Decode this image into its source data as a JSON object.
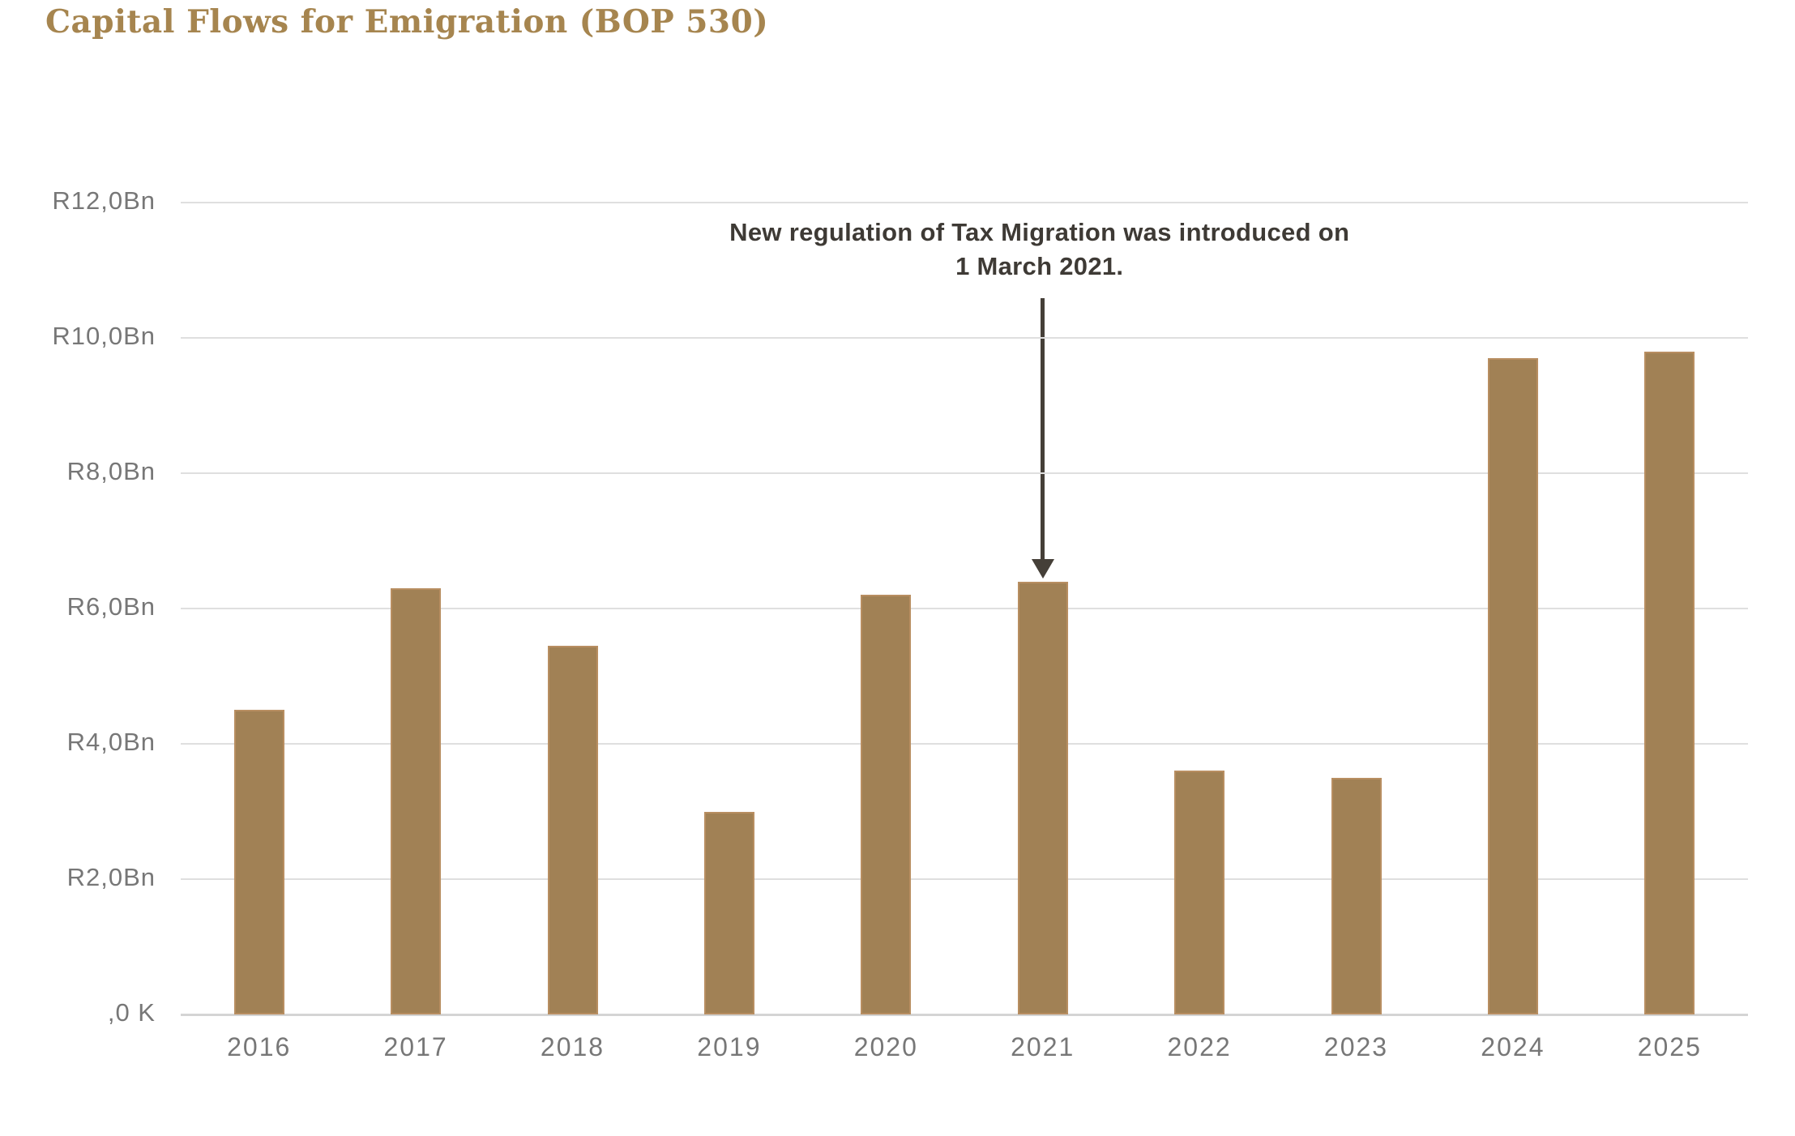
{
  "title": "Capital Flows for Emigration (BOP 530)",
  "annotation": {
    "line1": "New regulation of Tax Migration was introduced on",
    "line2": "1 March 2021."
  },
  "colors": {
    "title_text": "#A6854F",
    "bar_fill": "#A18155",
    "bar_border": "#B88E61",
    "gridline": "#DFDFDF",
    "baseline": "#D4D4D4",
    "axis_text": "#777777",
    "annotation_text": "#3E3A35",
    "arrow": "#453F38"
  },
  "chart_data": {
    "type": "bar",
    "title": "Capital Flows for Emigration (BOP 530)",
    "categories": [
      "2016",
      "2017",
      "2018",
      "2019",
      "2020",
      "2021",
      "2022",
      "2023",
      "2024",
      "2025"
    ],
    "values": [
      4.5,
      6.3,
      5.45,
      3.0,
      6.2,
      6.4,
      3.6,
      3.5,
      9.7,
      9.8
    ],
    "unit": "R billions (ZAR)",
    "xlabel": "",
    "ylabel": "",
    "ylim": [
      0,
      12
    ],
    "ytick_values": [
      0,
      2,
      4,
      6,
      8,
      10,
      12
    ],
    "ytick_labels": [
      ",0 K",
      "R2,0Bn",
      "R4,0Bn",
      "R6,0Bn",
      "R8,0Bn",
      "R10,0Bn",
      "R12,0Bn"
    ],
    "grid": true,
    "legend": "none",
    "annotation": {
      "text": "New regulation of Tax Migration was introduced on 1 March 2021.",
      "target_category": "2021"
    }
  }
}
